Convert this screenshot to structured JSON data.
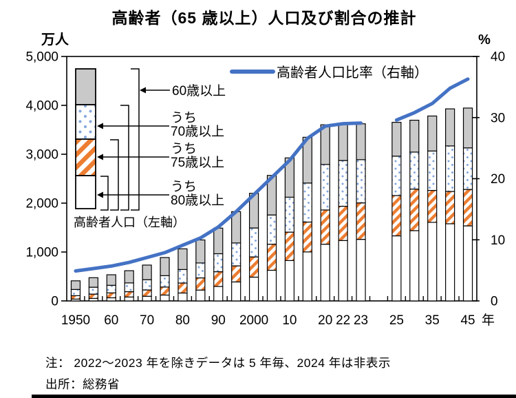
{
  "title": "高齢者（65 歳以上）人口及び割合の推計",
  "notes": {
    "note": "注： 2022～2023 年を除きデータは 5 年毎、2024 年は非表示",
    "source": "出所：総務省"
  },
  "legend": {
    "line_label": "高齢者人口比率（右軸）",
    "bar_caption": "高齢者人口（左軸）",
    "bracket_total_label": "60歳以上",
    "bracket_prefix": "うち",
    "bracket_70_label": "70歳以上",
    "bracket_75_label": "75歳以上",
    "bracket_80_label": "80歳以上"
  },
  "colors": {
    "line_blue": "#4472c4",
    "bar_gray": "#c9c9c9",
    "stripe_orange": "#ed7d31",
    "dot_blue": "#84a7dc",
    "border_black": "#000000"
  },
  "chart_data": {
    "type": "bar",
    "subtype": "stacked-bar-with-line-combo",
    "title": "高齢者（65 歳以上）人口及び割合の推計",
    "left_axis": {
      "unit": "万人",
      "min": 0,
      "max": 5000,
      "ticks": [
        {
          "v": 5000,
          "label": "5,000"
        },
        {
          "v": 4000,
          "label": "4,000"
        },
        {
          "v": 3000,
          "label": "3,000"
        },
        {
          "v": 2000,
          "label": "2,000"
        },
        {
          "v": 1000,
          "label": "1,000"
        },
        {
          "v": 0,
          "label": "0"
        }
      ]
    },
    "right_axis": {
      "unit": "%",
      "min": 0,
      "max": 40,
      "ticks": [
        {
          "v": 40,
          "label": "40"
        },
        {
          "v": 30,
          "label": "30"
        },
        {
          "v": 20,
          "label": "20"
        },
        {
          "v": 10,
          "label": "10"
        },
        {
          "v": 0,
          "label": "0"
        }
      ]
    },
    "x_suffix": "年",
    "slot_count": 23,
    "gap_year_hidden": "2024",
    "gap_slot": 17,
    "x_labels": [
      {
        "slot": 0,
        "text": "1950"
      },
      {
        "slot": 2,
        "text": "60"
      },
      {
        "slot": 4,
        "text": "70"
      },
      {
        "slot": 6,
        "text": "80"
      },
      {
        "slot": 8,
        "text": "90"
      },
      {
        "slot": 10,
        "text": "2000"
      },
      {
        "slot": 12,
        "text": "10"
      },
      {
        "slot": 14,
        "text": "20"
      },
      {
        "slot": 15,
        "text": "22"
      },
      {
        "slot": 16,
        "text": "23"
      },
      {
        "slot": 18,
        "text": "25"
      },
      {
        "slot": 20,
        "text": "35"
      },
      {
        "slot": 22,
        "text": "45"
      }
    ],
    "segments_legend": [
      "60歳以上(総数)",
      "うち70歳以上",
      "うち75歳以上",
      "うち80歳以上"
    ],
    "bars": [
      {
        "slot": 0,
        "year": "1950",
        "pop_total": 411,
        "pop_70plus": 234,
        "pop_75plus": 107,
        "pop_80plus": 37,
        "ratio_pct": 4.9
      },
      {
        "slot": 1,
        "year": "1955",
        "pop_total": 475,
        "pop_70plus": 280,
        "pop_75plus": 139,
        "pop_80plus": 51,
        "ratio_pct": 5.3
      },
      {
        "slot": 2,
        "year": "1960",
        "pop_total": 535,
        "pop_70plus": 319,
        "pop_75plus": 164,
        "pop_80plus": 64,
        "ratio_pct": 5.7
      },
      {
        "slot": 3,
        "year": "1965",
        "pop_total": 618,
        "pop_70plus": 368,
        "pop_75plus": 189,
        "pop_80plus": 80,
        "ratio_pct": 6.3
      },
      {
        "slot": 4,
        "year": "1970",
        "pop_total": 733,
        "pop_70plus": 434,
        "pop_75plus": 224,
        "pop_80plus": 95,
        "ratio_pct": 7.1
      },
      {
        "slot": 5,
        "year": "1975",
        "pop_total": 887,
        "pop_70plus": 516,
        "pop_75plus": 284,
        "pop_80plus": 120,
        "ratio_pct": 7.9
      },
      {
        "slot": 6,
        "year": "1980",
        "pop_total": 1065,
        "pop_70plus": 642,
        "pop_75plus": 366,
        "pop_80plus": 162,
        "ratio_pct": 9.1
      },
      {
        "slot": 7,
        "year": "1985",
        "pop_total": 1247,
        "pop_70plus": 776,
        "pop_75plus": 471,
        "pop_80plus": 222,
        "ratio_pct": 10.3
      },
      {
        "slot": 8,
        "year": "1990",
        "pop_total": 1489,
        "pop_70plus": 965,
        "pop_75plus": 597,
        "pop_80plus": 296,
        "ratio_pct": 12.1
      },
      {
        "slot": 9,
        "year": "1995",
        "pop_total": 1826,
        "pop_70plus": 1185,
        "pop_75plus": 717,
        "pop_80plus": 388,
        "ratio_pct": 14.6
      },
      {
        "slot": 10,
        "year": "2000",
        "pop_total": 2201,
        "pop_70plus": 1492,
        "pop_75plus": 900,
        "pop_80plus": 486,
        "ratio_pct": 17.4
      },
      {
        "slot": 11,
        "year": "2005",
        "pop_total": 2567,
        "pop_70plus": 1758,
        "pop_75plus": 1160,
        "pop_80plus": 627,
        "ratio_pct": 20.2
      },
      {
        "slot": 12,
        "year": "2010",
        "pop_total": 2925,
        "pop_70plus": 2121,
        "pop_75plus": 1407,
        "pop_80plus": 826,
        "ratio_pct": 23.0
      },
      {
        "slot": 13,
        "year": "2015",
        "pop_total": 3347,
        "pop_70plus": 2411,
        "pop_75plus": 1613,
        "pop_80plus": 1002,
        "ratio_pct": 26.6
      },
      {
        "slot": 14,
        "year": "2020",
        "pop_total": 3603,
        "pop_70plus": 2791,
        "pop_75plus": 1860,
        "pop_80plus": 1160,
        "ratio_pct": 28.6
      },
      {
        "slot": 15,
        "year": "2022",
        "pop_total": 3624,
        "pop_70plus": 2872,
        "pop_75plus": 1936,
        "pop_80plus": 1235,
        "ratio_pct": 29.0
      },
      {
        "slot": 16,
        "year": "2023",
        "pop_total": 3623,
        "pop_70plus": 2889,
        "pop_75plus": 2005,
        "pop_80plus": 1259,
        "ratio_pct": 29.1
      },
      {
        "slot": 18,
        "year": "2025",
        "pop_total": 3653,
        "pop_70plus": 2961,
        "pop_75plus": 2155,
        "pop_80plus": 1331,
        "ratio_pct": 29.6
      },
      {
        "slot": 19,
        "year": "2030",
        "pop_total": 3696,
        "pop_70plus": 3044,
        "pop_75plus": 2288,
        "pop_80plus": 1437,
        "ratio_pct": 30.8
      },
      {
        "slot": 20,
        "year": "2035",
        "pop_total": 3782,
        "pop_70plus": 3066,
        "pop_75plus": 2260,
        "pop_80plus": 1607,
        "ratio_pct": 32.3
      },
      {
        "slot": 21,
        "year": "2040",
        "pop_total": 3928,
        "pop_70plus": 3170,
        "pop_75plus": 2239,
        "pop_80plus": 1578,
        "ratio_pct": 34.8
      },
      {
        "slot": 22,
        "year": "2045",
        "pop_total": 3945,
        "pop_70plus": 3130,
        "pop_75plus": 2280,
        "pop_80plus": 1535,
        "ratio_pct": 36.3
      }
    ],
    "line_series_name": "高齢者人口比率（右軸）",
    "bar_series_name": "高齢者人口（左軸）",
    "legend_position": "top-inside",
    "grid": false
  }
}
